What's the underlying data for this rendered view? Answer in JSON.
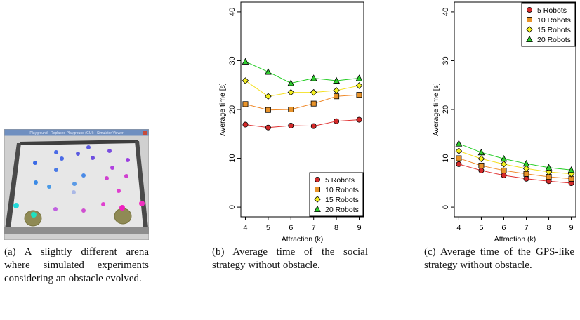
{
  "captions": {
    "a": "(a) A slightly different arena where simulated experiments considering an obstacle evolved.",
    "b": "(b) Average time of the social strategy without obstacle.",
    "c": "(c) Average time of the GPS-like strategy without obstacle."
  },
  "simulator": {
    "window_title": "Playground - Replaced Playground (GUI) - Simulator Viewer",
    "colors": {
      "titlebar": "#6f8fc0",
      "floor": "#e4e4e4",
      "wall": "#4a4a4a",
      "goal": "#8f8a55"
    }
  },
  "chart_data": [
    {
      "type": "line",
      "xlabel": "Attraction (k)",
      "ylabel": "Average time [s]",
      "x": [
        4,
        5,
        6,
        7,
        8,
        9
      ],
      "xlim": [
        3.8,
        9.2
      ],
      "ylim": [
        -2,
        42
      ],
      "yticks": [
        0,
        10,
        20,
        30,
        40
      ],
      "legend_position": "bottom-right",
      "series": [
        {
          "name": "5 Robots",
          "values": [
            16.9,
            16.3,
            16.7,
            16.6,
            17.6,
            17.9
          ],
          "marker": "circle",
          "fill": "#d42a2a",
          "line": "#e03030"
        },
        {
          "name": "10 Robots",
          "values": [
            21.1,
            19.9,
            20.0,
            21.2,
            22.7,
            23.0
          ],
          "marker": "square",
          "fill": "#e8932a",
          "line": "#f08a2a"
        },
        {
          "name": "15 Robots",
          "values": [
            25.9,
            22.7,
            23.5,
            23.5,
            23.9,
            24.9
          ],
          "marker": "diamond",
          "fill": "#f4f020",
          "line": "#f4e020"
        },
        {
          "name": "20 Robots",
          "values": [
            29.8,
            27.7,
            25.4,
            26.4,
            25.9,
            26.4
          ],
          "marker": "triangle",
          "fill": "#2ecc2e",
          "line": "#22cc22"
        }
      ]
    },
    {
      "type": "line",
      "xlabel": "Attraction (k)",
      "ylabel": "Average time [s]",
      "x": [
        4,
        5,
        6,
        7,
        8,
        9
      ],
      "xlim": [
        3.8,
        9.2
      ],
      "ylim": [
        -2,
        42
      ],
      "yticks": [
        0,
        10,
        20,
        30,
        40
      ],
      "legend_position": "top-right",
      "series": [
        {
          "name": "5 Robots",
          "values": [
            8.8,
            7.5,
            6.5,
            5.8,
            5.3,
            4.9
          ],
          "marker": "circle",
          "fill": "#d42a2a",
          "line": "#e03030"
        },
        {
          "name": "10 Robots",
          "values": [
            10.0,
            8.5,
            7.5,
            6.8,
            6.2,
            5.8
          ],
          "marker": "square",
          "fill": "#e8932a",
          "line": "#f08a2a"
        },
        {
          "name": "15 Robots",
          "values": [
            11.5,
            9.9,
            8.8,
            7.9,
            7.2,
            6.8
          ],
          "marker": "diamond",
          "fill": "#f4f020",
          "line": "#f4e020"
        },
        {
          "name": "20 Robots",
          "values": [
            13.0,
            11.2,
            9.9,
            8.9,
            8.1,
            7.6
          ],
          "marker": "triangle",
          "fill": "#2ecc2e",
          "line": "#22cc22"
        }
      ]
    }
  ]
}
